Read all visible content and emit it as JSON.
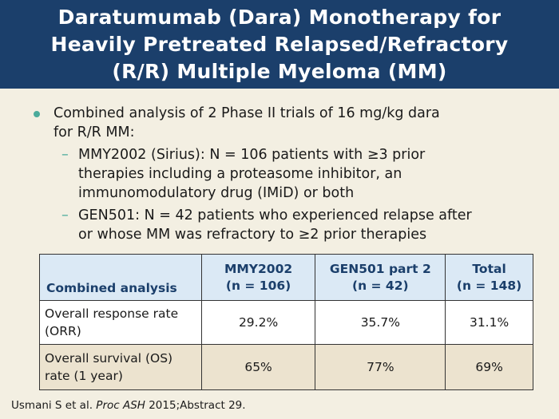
{
  "title": {
    "lines": [
      "Daratumumab (Dara) Monotherapy for",
      "Heavily Pretreated Relapsed/Refractory",
      "(R/R) Multiple Myeloma (MM)"
    ]
  },
  "bullet": {
    "lines": [
      "Combined analysis of 2 Phase II trials of 16 mg/kg dara",
      "for R/R MM:"
    ],
    "subs": [
      {
        "dash": "–",
        "lines": [
          "MMY2002 (Sirius): N = 106 patients with ≥3 prior",
          "therapies including a proteasome inhibitor, an",
          "immunomodulatory drug (IMiD) or both"
        ]
      },
      {
        "dash": "–",
        "lines": [
          "GEN501: N = 42 patients who experienced relapse after",
          "or whose MM was refractory to ≥2 prior therapies"
        ]
      }
    ]
  },
  "table": {
    "headers": [
      [
        "Combined analysis"
      ],
      [
        "MMY2002",
        "(n = 106)"
      ],
      [
        "GEN501 part 2",
        "(n = 42)"
      ],
      [
        "Total",
        "(n = 148)"
      ]
    ],
    "rows": [
      {
        "label": [
          "Overall response rate",
          "(ORR)"
        ],
        "values": [
          "29.2%",
          "35.7%",
          "31.1%"
        ]
      },
      {
        "label": [
          "Overall survival (OS)",
          "rate (1 year)"
        ],
        "values": [
          "65%",
          "77%",
          "69%"
        ]
      }
    ]
  },
  "citation": {
    "pre": "Usmani S et al. ",
    "journal": "Proc ASH",
    "post": " 2015;Abstract 29."
  },
  "colors": {
    "title_bar": "#1b3f6b",
    "background": "#f3efe2",
    "bullet_accent": "#4bab9b",
    "table_header": "#dbe9f5",
    "table_row_alt": "#ece3cf"
  }
}
